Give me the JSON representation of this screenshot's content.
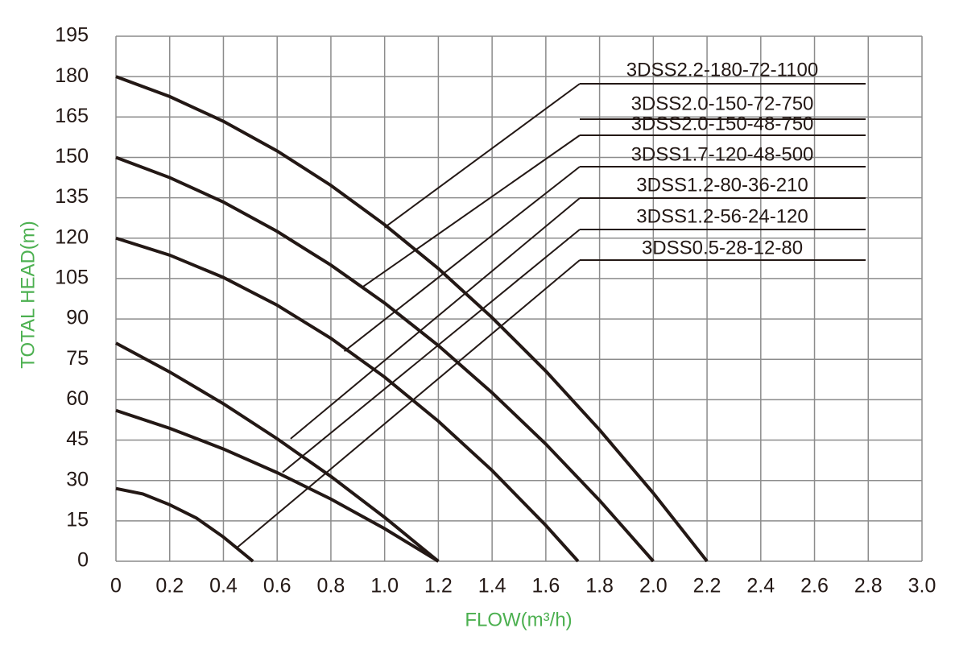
{
  "chart_data": {
    "type": "line",
    "x_label": "FLOW(m³/h)",
    "y_label": "TOTAL HEAD(m)",
    "xlim": [
      0,
      3
    ],
    "ylim": [
      0,
      195
    ],
    "xticks": [
      0,
      0.2,
      0.4,
      0.6,
      0.8,
      {
        "value": 1,
        "label": "1.0"
      },
      1.2,
      1.4,
      1.6,
      1.8,
      {
        "value": 2,
        "label": "2.0"
      },
      2.2,
      2.4,
      2.6,
      2.8,
      {
        "value": 3,
        "label": "3.0"
      }
    ],
    "yticks": [
      0,
      15,
      30,
      45,
      60,
      75,
      90,
      105,
      120,
      135,
      150,
      165,
      180,
      195
    ],
    "grid": true,
    "series": [
      {
        "color": "#231815",
        "x": [
          0,
          0.2,
          0.4,
          0.6,
          0.8,
          1.0,
          1.2,
          1.4,
          1.6,
          1.8,
          2.0,
          2.2
        ],
        "values": [
          180,
          172.6,
          163.4,
          152.4,
          139.6,
          125,
          108.7,
          90.5,
          70.6,
          48.8,
          25.3,
          0
        ]
      },
      {
        "color": "#231815",
        "x": [
          0,
          0.2,
          0.4,
          0.6,
          0.8,
          1.0,
          1.2,
          1.4,
          1.6,
          1.8,
          2.0
        ],
        "values": [
          150,
          142.5,
          133.4,
          122.5,
          110,
          95.9,
          80.1,
          62.6,
          43.5,
          22.6,
          0
        ]
      },
      {
        "color": "#231815",
        "x": [
          0,
          0.2,
          0.4,
          0.6,
          0.8,
          1.0,
          1.2,
          1.4,
          1.6,
          1.72
        ],
        "values": [
          120,
          113.7,
          105.4,
          95.1,
          82.8,
          68.4,
          52,
          33.7,
          13.3,
          0
        ]
      },
      {
        "color": "#231815",
        "x": [
          0,
          0.2,
          0.4,
          0.6,
          0.8,
          1.0,
          1.2
        ],
        "values": [
          81,
          70.3,
          58.5,
          45.5,
          31.5,
          16.3,
          0
        ]
      },
      {
        "color": "#231815",
        "x": [
          0,
          0.2,
          0.4,
          0.6,
          0.8,
          1.0,
          1.2
        ],
        "values": [
          56,
          49.4,
          41.7,
          32.9,
          23.1,
          12.1,
          0
        ]
      },
      {
        "color": "#231815",
        "x": [
          0,
          0.1,
          0.2,
          0.3,
          0.4,
          0.51
        ],
        "values": [
          27,
          25,
          21,
          16,
          9,
          0
        ]
      }
    ],
    "annotations": [
      {
        "text": "3DSS2.2-180-72-1100",
        "x": 1.0,
        "y": 124
      },
      {
        "text": "3DSS2.0-150-72-750"
      },
      {
        "text": "3DSS2.0-150-48-750",
        "x": 0.92,
        "y": 102
      },
      {
        "text": "3DSS1.7-120-48-500",
        "x": 0.85,
        "y": 78
      },
      {
        "text": "3DSS1.2-80-36-210",
        "x": 0.65,
        "y": 45.5
      },
      {
        "text": "3DSS1.2-56-24-120",
        "x": 0.62,
        "y": 33
      },
      {
        "text": "3DSS0.5-28-12-80",
        "x": 0.45,
        "y": 5
      }
    ]
  }
}
